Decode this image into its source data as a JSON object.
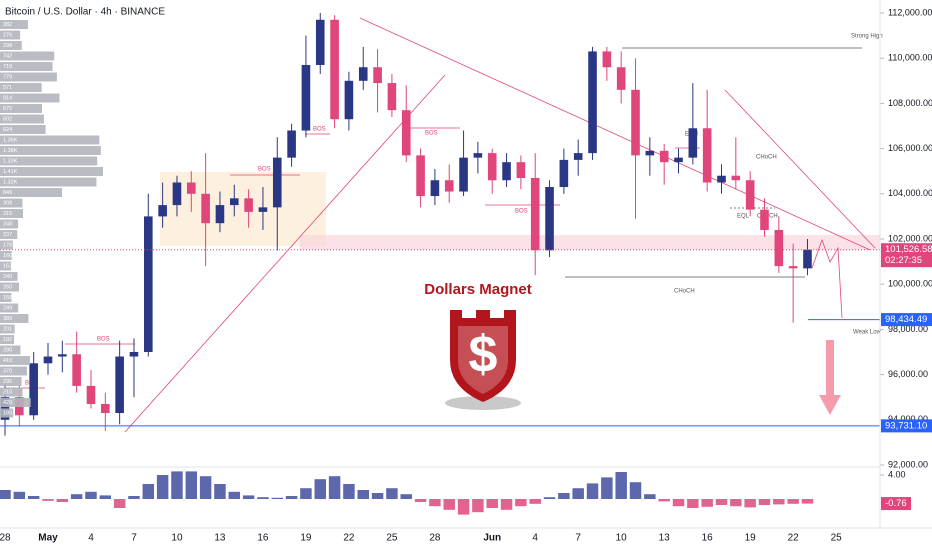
{
  "title": "Bitcoin / U.S. Dollar · 4h · BINANCE",
  "logo": {
    "text": "Dollars Magnet",
    "symbol": "$"
  },
  "chart_data": [
    {
      "type": "candlestick",
      "categories": [
        "28",
        null,
        null,
        "May",
        null,
        null,
        "4",
        null,
        null,
        "7",
        null,
        null,
        "10",
        null,
        null,
        "13",
        null,
        null,
        "16",
        null,
        null,
        "19",
        null,
        null,
        "22",
        null,
        null,
        "25",
        null,
        null,
        "28",
        null,
        null,
        null,
        "Jun",
        null,
        null,
        "4",
        null,
        null,
        "7",
        null,
        null,
        "10",
        null,
        null,
        "13",
        null,
        null,
        "16",
        null,
        null,
        "19",
        null,
        null,
        "22",
        null,
        null,
        "25"
      ],
      "open": [
        94000,
        95000,
        94200,
        96500,
        96800,
        96900,
        95500,
        94700,
        94300,
        96800,
        97000,
        103000,
        103500,
        104500,
        104000,
        102700,
        103500,
        103800,
        103200,
        103400,
        105600,
        106800,
        109700,
        111700,
        107300,
        109000,
        109600,
        108900,
        107700,
        105700,
        103900,
        104600,
        104100,
        105600,
        105800,
        104600,
        105400,
        104700,
        101500,
        104300,
        105500,
        105800,
        110300,
        109600,
        108600,
        105700,
        105900,
        105400,
        105600,
        106900,
        104500,
        104800,
        104600,
        103300,
        102400,
        100800,
        100700,
        null,
        null
      ],
      "high": [
        95600,
        95500,
        97000,
        97400,
        97500,
        97900,
        96200,
        95200,
        97500,
        97600,
        104000,
        104500,
        104800,
        105000,
        105800,
        104100,
        104400,
        104200,
        104300,
        106500,
        107100,
        111000,
        112000,
        111900,
        109400,
        110500,
        110400,
        109300,
        108800,
        106000,
        105100,
        105300,
        106800,
        106300,
        106000,
        105800,
        105700,
        105800,
        104600,
        106000,
        106400,
        110500,
        110500,
        110300,
        110000,
        106500,
        106200,
        106000,
        108900,
        108600,
        105300,
        106500,
        105000,
        103800,
        103000,
        101800,
        102000,
        null,
        null
      ],
      "low": [
        93300,
        93700,
        94000,
        96000,
        96100,
        95200,
        94500,
        93500,
        93800,
        95000,
        96800,
        102500,
        103000,
        103200,
        100800,
        102300,
        103000,
        102500,
        102400,
        101500,
        105200,
        106500,
        109300,
        106900,
        106800,
        108600,
        107600,
        107400,
        105400,
        103400,
        103500,
        103600,
        103900,
        104900,
        104000,
        104300,
        104200,
        100400,
        101200,
        104000,
        104800,
        105500,
        109000,
        108000,
        102900,
        104800,
        104400,
        104900,
        105300,
        104100,
        104000,
        104200,
        103000,
        102100,
        100500,
        98300,
        100400,
        null,
        null
      ],
      "close": [
        95000,
        94200,
        96500,
        96800,
        96900,
        95500,
        94700,
        94300,
        96800,
        97000,
        103000,
        103500,
        104500,
        104000,
        102700,
        103500,
        103800,
        103200,
        103400,
        105600,
        106800,
        109700,
        111700,
        107300,
        109000,
        109600,
        108900,
        107700,
        105700,
        103900,
        104600,
        104100,
        105600,
        105800,
        104600,
        105400,
        104700,
        101500,
        104300,
        105500,
        105800,
        110300,
        109600,
        108600,
        105700,
        105900,
        105400,
        105600,
        106900,
        104500,
        104800,
        104600,
        103300,
        102400,
        100800,
        100700,
        101526.58,
        null,
        null
      ],
      "up_color": "#2a3784",
      "down_color": "#e0457b",
      "ylim": [
        92000,
        112575
      ],
      "yticks": [
        {
          "value": 92000,
          "label": "92,000.00"
        },
        {
          "value": 94000,
          "label": "94,000.00"
        },
        {
          "value": 96000,
          "label": "96,000.00"
        },
        {
          "value": 98000,
          "label": "98,000.00"
        },
        {
          "value": 100000,
          "label": "100,000.00"
        },
        {
          "value": 102000,
          "label": "102,000.00"
        },
        {
          "value": 104000,
          "label": "104,000.00"
        },
        {
          "value": 106000,
          "label": "106,000.00"
        },
        {
          "value": 108000,
          "label": "108,000.00"
        },
        {
          "value": 110000,
          "label": "110,000.00"
        },
        {
          "value": 112000,
          "label": "112,000.00"
        }
      ],
      "price_lines": [
        {
          "value": 101526.58,
          "label": "101,526.58",
          "countdown": "02:27:35",
          "color": "#e0457b"
        },
        {
          "value": 98434.49,
          "label": "98,434.49",
          "color": "#2962ff"
        },
        {
          "value": 93731.1,
          "label": "93,731.10",
          "color": "#2962ff"
        }
      ],
      "annotations": [
        "BOS",
        "BOS",
        "BOS",
        "BOS",
        "BOS",
        "BOS",
        "CHoCH",
        "EQH",
        "CHoCH",
        "EQL",
        "CHoCH",
        "Strong High",
        "Weak Low"
      ]
    },
    {
      "type": "histogram",
      "values": [
        1.5,
        1.2,
        0.5,
        -0.3,
        -0.5,
        0.8,
        1.2,
        0.6,
        -1.5,
        0.5,
        2.5,
        4.0,
        4.6,
        4.6,
        3.8,
        2.5,
        1.2,
        0.6,
        0.3,
        0.2,
        0.5,
        1.8,
        3.3,
        3.8,
        2.5,
        1.5,
        1.0,
        1.8,
        0.8,
        -0.5,
        -1.2,
        -1.8,
        -2.6,
        -2.2,
        -1.5,
        -1.8,
        -1.2,
        -0.8,
        0.3,
        1.0,
        1.8,
        2.6,
        3.6,
        4.5,
        2.8,
        0.8,
        -0.4,
        -1.2,
        -1.5,
        -1.3,
        -1.0,
        -1.2,
        -1.4,
        -1.0,
        -0.9,
        -0.8,
        -0.76,
        null,
        null
      ],
      "positive_color": "#3f4c9e",
      "negative_color": "#e0457b",
      "ylim": [
        -4.5,
        5
      ],
      "yticks": [
        {
          "value": 4,
          "label": "4.00"
        }
      ],
      "last_value": {
        "value": -0.76,
        "label": "-0.76"
      }
    },
    {
      "type": "volume-profile",
      "values": [
        382,
        276,
        298,
        742,
        719,
        779,
        571,
        814,
        575,
        602,
        624,
        1360,
        1380,
        1330,
        1410,
        1320,
        849,
        308,
        315,
        248,
        237,
        176,
        160,
        152,
        240,
        260,
        158,
        249,
        389,
        201,
        192,
        280,
        410,
        370,
        295,
        310,
        420,
        180
      ],
      "value_labels": [
        "382",
        "276",
        "298",
        "742",
        "719",
        "779",
        "571",
        "814",
        "575",
        "602",
        "624",
        "1.36K",
        "1.38K",
        "1.33K",
        "1.41K",
        "1.32K",
        "849",
        "308",
        "315",
        "248",
        "237",
        "176",
        "160",
        "152",
        "240",
        "260",
        "158",
        "249",
        "389",
        "201",
        "192",
        "280",
        "410",
        "370",
        "295",
        "310",
        "420",
        "180"
      ],
      "color": "#b2b5be"
    }
  ]
}
